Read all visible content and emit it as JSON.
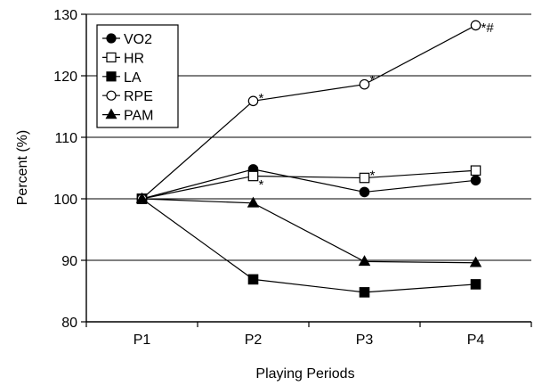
{
  "chart_data": {
    "type": "line",
    "title": "",
    "xlabel": "Playing Periods",
    "ylabel": "Percent (%)",
    "categories": [
      "P1",
      "P2",
      "P3",
      "P4"
    ],
    "ylim": [
      80,
      130
    ],
    "yticks": [
      80,
      90,
      100,
      110,
      120,
      130
    ],
    "grid": "horizontal",
    "legend_position": "top-left",
    "series": [
      {
        "name": "VO2",
        "marker": "circle-filled",
        "values": [
          100,
          104.8,
          101.1,
          103.0
        ]
      },
      {
        "name": "HR",
        "marker": "square-open",
        "values": [
          100,
          103.7,
          103.4,
          104.6
        ]
      },
      {
        "name": "LA",
        "marker": "square-filled",
        "values": [
          100,
          86.9,
          84.8,
          86.1
        ]
      },
      {
        "name": "RPE",
        "marker": "circle-open",
        "values": [
          100,
          115.9,
          118.6,
          128.2
        ]
      },
      {
        "name": "PAM",
        "marker": "triangle-filled",
        "values": [
          100,
          99.3,
          89.8,
          89.6
        ]
      }
    ],
    "annotations": [
      {
        "text": "*",
        "category": "P2",
        "y": 116.5
      },
      {
        "text": "*",
        "category": "P2",
        "y": 102.5
      },
      {
        "text": "*",
        "category": "P3",
        "y": 119.5
      },
      {
        "text": "*",
        "category": "P3",
        "y": 104.0
      },
      {
        "text": "*#",
        "category": "P4",
        "y": 128.0
      }
    ]
  }
}
